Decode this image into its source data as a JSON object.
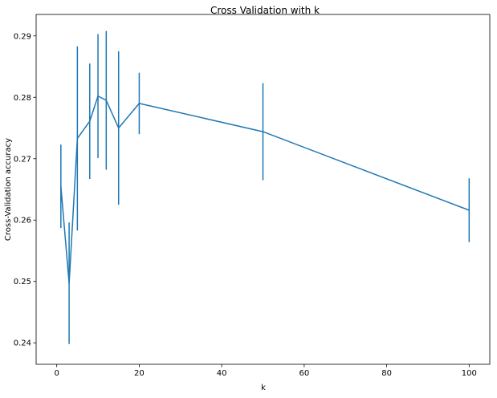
{
  "chart_data": {
    "type": "line",
    "title": "Cross Validation with k",
    "xlabel": "k",
    "ylabel": "Cross-Validation accuracy",
    "xlim": [
      -5,
      105
    ],
    "ylim": [
      0.2365,
      0.2935
    ],
    "xticks": [
      0,
      20,
      40,
      60,
      80,
      100
    ],
    "yticks": [
      0.24,
      0.25,
      0.26,
      0.27,
      0.28,
      0.29
    ],
    "ytick_labels": [
      "0.24",
      "0.25",
      "0.26",
      "0.27",
      "0.28",
      "0.29"
    ],
    "grid": false,
    "color": "#1f77b4",
    "series": [
      {
        "x": [
          1,
          3,
          5,
          8,
          10,
          12,
          15,
          20,
          50,
          100
        ],
        "y": [
          0.2655,
          0.2497,
          0.2733,
          0.2761,
          0.2802,
          0.2795,
          0.275,
          0.279,
          0.2744,
          0.2616
        ],
        "error": [
          0.0068,
          0.0099,
          0.015,
          0.0094,
          0.0101,
          0.0113,
          0.0125,
          0.005,
          0.0079,
          0.0052
        ]
      }
    ]
  }
}
